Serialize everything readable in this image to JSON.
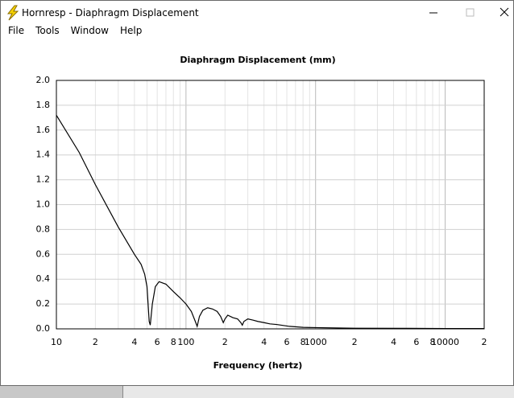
{
  "window": {
    "title": "Hornresp - Diaphragm Displacement"
  },
  "menu": [
    "File",
    "Tools",
    "Window",
    "Help"
  ],
  "chart_data": {
    "type": "line",
    "title": "Diaphragm Displacement (mm)",
    "x_label": "Frequency (hertz)",
    "x_scale": "log",
    "grid": true,
    "x": [
      10,
      15,
      20,
      30,
      40,
      45,
      48,
      50,
      51,
      52,
      53,
      55,
      58,
      62,
      70,
      80,
      90,
      100,
      110,
      118,
      122,
      127,
      135,
      147,
      160,
      174,
      185,
      194,
      200,
      210,
      230,
      250,
      265,
      272,
      280,
      300,
      330,
      358,
      400,
      444,
      500,
      630,
      800,
      1000,
      2000,
      5000,
      10000,
      20000
    ],
    "series": [
      {
        "name": "Displacement",
        "color": "#000000",
        "values": [
          1.72,
          1.42,
          1.16,
          0.82,
          0.6,
          0.52,
          0.44,
          0.34,
          0.2,
          0.06,
          0.03,
          0.2,
          0.34,
          0.38,
          0.36,
          0.3,
          0.25,
          0.2,
          0.14,
          0.06,
          0.02,
          0.1,
          0.15,
          0.17,
          0.16,
          0.14,
          0.1,
          0.05,
          0.08,
          0.11,
          0.09,
          0.08,
          0.05,
          0.03,
          0.06,
          0.08,
          0.07,
          0.06,
          0.05,
          0.04,
          0.035,
          0.02,
          0.012,
          0.01,
          0.005,
          0.004,
          0.003,
          0.003
        ]
      }
    ],
    "xlim": [
      10,
      20000
    ],
    "ylim": [
      0,
      2
    ],
    "xticks": [
      10,
      {
        "value": 20,
        "label": "2"
      },
      {
        "value": 40,
        "label": "4"
      },
      {
        "value": 60,
        "label": "6"
      },
      {
        "value": 80,
        "label": "8"
      },
      100,
      {
        "value": 200,
        "label": "2"
      },
      {
        "value": 400,
        "label": "4"
      },
      {
        "value": 600,
        "label": "6"
      },
      {
        "value": 800,
        "label": "8"
      },
      1000,
      {
        "value": 2000,
        "label": "2"
      },
      {
        "value": 4000,
        "label": "4"
      },
      {
        "value": 6000,
        "label": "6"
      },
      {
        "value": 8000,
        "label": "8"
      },
      10000,
      {
        "value": 20000,
        "label": "2"
      }
    ],
    "xgrid_minor": [
      30,
      50,
      70,
      90,
      300,
      500,
      700,
      900,
      3000,
      5000,
      7000,
      9000
    ],
    "yticks": [
      {
        "value": 0,
        "label": "0.0"
      },
      0.2,
      0.4,
      0.6,
      0.8,
      {
        "value": 1,
        "label": "1.0"
      },
      1.2,
      1.4,
      1.6,
      1.8,
      {
        "value": 2,
        "label": "2.0"
      }
    ]
  }
}
